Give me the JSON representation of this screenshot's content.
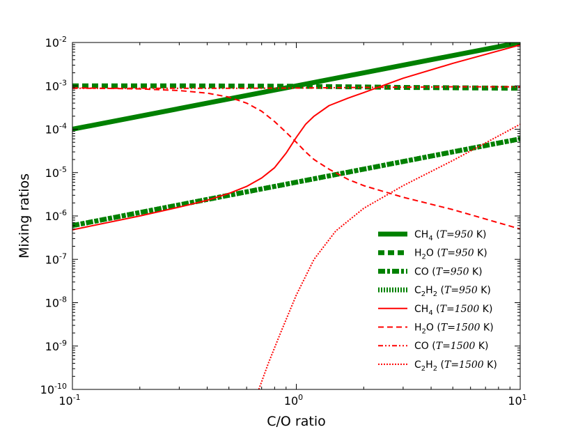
{
  "chart_data": {
    "type": "line",
    "title": "",
    "xlabel": "C/O ratio",
    "ylabel": "Mixing ratios",
    "xscale": "log",
    "yscale": "log",
    "xlim": [
      0.1,
      10
    ],
    "ylim": [
      1e-10,
      0.01
    ],
    "x_ticks": [
      {
        "base": "10",
        "exp": "-1"
      },
      {
        "base": "10",
        "exp": "0"
      },
      {
        "base": "10",
        "exp": "1"
      }
    ],
    "y_ticks": [
      {
        "base": "10",
        "exp": "-10"
      },
      {
        "base": "10",
        "exp": "-9"
      },
      {
        "base": "10",
        "exp": "-8"
      },
      {
        "base": "10",
        "exp": "-7"
      },
      {
        "base": "10",
        "exp": "-6"
      },
      {
        "base": "10",
        "exp": "-5"
      },
      {
        "base": "10",
        "exp": "-4"
      },
      {
        "base": "10",
        "exp": "-3"
      },
      {
        "base": "10",
        "exp": "-2"
      }
    ],
    "legend_position": "lower-right",
    "series": [
      {
        "name": "CH4 (T=950 K)",
        "color": "#008000",
        "style": "solid",
        "x": [
          0.1,
          1.0,
          10.0
        ],
        "y": [
          0.0001,
          0.001,
          0.01
        ]
      },
      {
        "name": "H2O (T=950 K)",
        "color": "#008000",
        "style": "dashed",
        "x": [
          0.1,
          0.3,
          1.0,
          3.0,
          10.0
        ],
        "y": [
          0.001,
          0.001,
          0.00098,
          0.00092,
          0.00088
        ]
      },
      {
        "name": "CO (T=950 K)",
        "color": "#008000",
        "style": "dashdot",
        "x": [
          0.1,
          1.0,
          10.0
        ],
        "y": [
          6e-07,
          6e-06,
          6e-05
        ]
      },
      {
        "name": "C2H2 (T=950 K)",
        "color": "#008000",
        "style": "dotted",
        "x": [
          0.1,
          1.0,
          10.0
        ],
        "y": [
          6e-07,
          6e-06,
          6e-05
        ]
      },
      {
        "name": "CH4 (T=1500 K)",
        "color": "#ff0000",
        "style": "solid",
        "x": [
          0.1,
          0.2,
          0.3,
          0.4,
          0.5,
          0.6,
          0.7,
          0.8,
          0.9,
          1.0,
          1.1,
          1.2,
          1.4,
          1.7,
          2.0,
          3.0,
          5.0,
          10.0
        ],
        "y": [
          4.8e-07,
          1e-06,
          1.6e-06,
          2.3e-06,
          3.3e-06,
          4.8e-06,
          7.5e-06,
          1.3e-05,
          2.8e-05,
          6.5e-05,
          0.00013,
          0.0002,
          0.00035,
          0.00052,
          0.0007,
          0.0015,
          0.0033,
          0.0088
        ]
      },
      {
        "name": "H2O (T=1500 K)",
        "color": "#ff0000",
        "style": "dashed",
        "x": [
          0.1,
          0.2,
          0.3,
          0.4,
          0.5,
          0.6,
          0.7,
          0.8,
          0.9,
          1.0,
          1.1,
          1.2,
          1.4,
          1.7,
          2.0,
          3.0,
          5.0,
          10.0
        ],
        "y": [
          0.0009,
          0.00085,
          0.00078,
          0.00068,
          0.00055,
          0.0004,
          0.00026,
          0.00015,
          8.5e-05,
          5e-05,
          3e-05,
          2e-05,
          1.2e-05,
          7e-06,
          5e-06,
          2.7e-06,
          1.4e-06,
          5e-07
        ]
      },
      {
        "name": "CO (T=1500 K)",
        "color": "#ff0000",
        "style": "dashdotdot",
        "x": [
          0.1,
          0.3,
          0.6,
          1.0,
          2.0,
          5.0,
          10.0
        ],
        "y": [
          0.00088,
          0.00088,
          0.00088,
          0.00089,
          0.00092,
          0.00095,
          0.00095
        ]
      },
      {
        "name": "C2H2 (T=1500 K)",
        "color": "#ff0000",
        "style": "dotted",
        "x": [
          0.68,
          0.75,
          0.85,
          1.0,
          1.2,
          1.5,
          2.0,
          3.0,
          5.0,
          10.0
        ],
        "y": [
          1e-10,
          4e-10,
          2e-09,
          1.5e-08,
          1e-07,
          4.5e-07,
          1.5e-06,
          5e-06,
          1.9e-05,
          0.00013
        ]
      }
    ],
    "legend": [
      {
        "sym": "CH",
        "sub": "4",
        "tail": "",
        "pre": " (",
        "var": "T",
        "eq": "=950",
        "post": " K)"
      },
      {
        "sym": "H",
        "sub": "2",
        "tail": "O",
        "pre": " (",
        "var": "T",
        "eq": "=950",
        "post": " K)"
      },
      {
        "sym": "CO",
        "sub": "",
        "tail": "",
        "pre": " (",
        "var": "T",
        "eq": "=950",
        "post": " K)"
      },
      {
        "sym": "C",
        "sub": "2",
        "tail": "H",
        "tail_sub": "2",
        "pre": " (",
        "var": "T",
        "eq": "=950",
        "post": " K)"
      },
      {
        "sym": "CH",
        "sub": "4",
        "tail": "",
        "pre": " (",
        "var": "T",
        "eq": "=1500",
        "post": " K)"
      },
      {
        "sym": "H",
        "sub": "2",
        "tail": "O",
        "pre": " (",
        "var": "T",
        "eq": "=1500",
        "post": " K)"
      },
      {
        "sym": "CO",
        "sub": "",
        "tail": "",
        "pre": " (",
        "var": "T",
        "eq": "=1500",
        "post": " K)"
      },
      {
        "sym": "C",
        "sub": "2",
        "tail": "H",
        "tail_sub": "2",
        "pre": " (",
        "var": "T",
        "eq": "=1500",
        "post": " K)"
      }
    ]
  }
}
